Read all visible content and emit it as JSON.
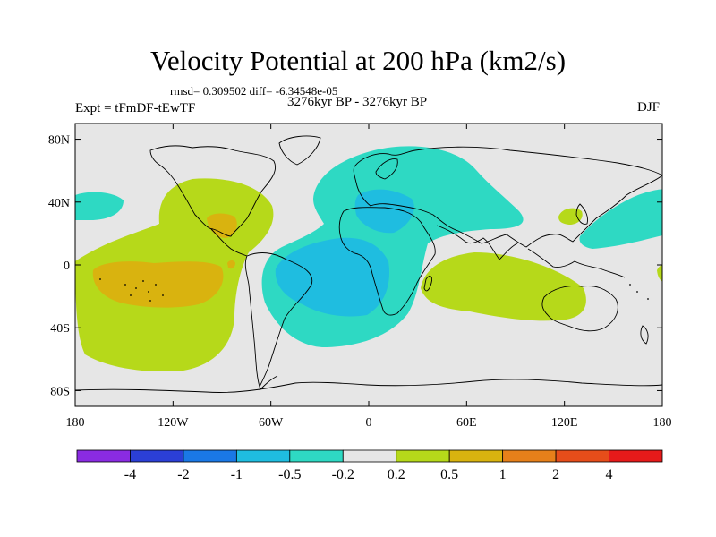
{
  "title": "Velocity Potential at 200 hPa (km2/s)",
  "stats": "rmsd= 0.309502 diff= -6.34548e-05",
  "left_label": "Expt = tFmDF-tEwTF",
  "center_label": "3276kyr BP - 3276kyr BP",
  "right_label": "DJF",
  "map": {
    "projection": "cylindrical-equidistant",
    "lon_range": [
      -180,
      180
    ],
    "lat_range": [
      -90,
      90
    ],
    "background_color": "#e6e6e6",
    "coastline_color": "#000000",
    "y_ticks": [
      {
        "lat": 80,
        "label": "80N"
      },
      {
        "lat": 40,
        "label": "40N"
      },
      {
        "lat": 0,
        "label": "0"
      },
      {
        "lat": -40,
        "label": "40S"
      },
      {
        "lat": -80,
        "label": "80S"
      }
    ],
    "x_ticks": [
      {
        "lon": -180,
        "label": "180"
      },
      {
        "lon": -120,
        "label": "120W"
      },
      {
        "lon": -60,
        "label": "60W"
      },
      {
        "lon": 0,
        "label": "0"
      },
      {
        "lon": 60,
        "label": "60E"
      },
      {
        "lon": 120,
        "label": "120E"
      },
      {
        "lon": 180,
        "label": "180"
      }
    ]
  },
  "colorbar": {
    "colors": [
      "#8a2be2",
      "#2b3fd6",
      "#1a78e6",
      "#1fbde0",
      "#2ed9c3",
      "#e6e6e6",
      "#b6d91a",
      "#d9b30f",
      "#e6801a",
      "#e64d1a",
      "#e61a1a"
    ],
    "labels": [
      "-4",
      "-2",
      "-1",
      "-0.5",
      "-0.2",
      "0.2",
      "0.5",
      "1",
      "2",
      "4"
    ]
  },
  "legend_colors": {
    "neg_0.2": "#2ed9c3",
    "neg_0.5": "#1fbde0",
    "pos_0.2": "#b6d91a",
    "pos_0.5": "#d9b30f",
    "pos_1": "#e6801a"
  }
}
